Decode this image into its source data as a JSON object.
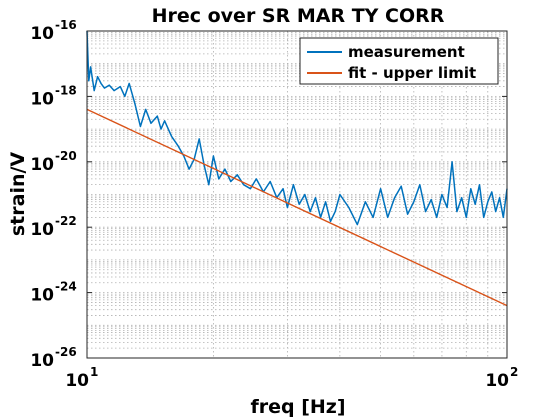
{
  "chart_data": {
    "type": "line",
    "title": "Hrec over SR MAR TY CORR",
    "xlabel": "freq [Hz]",
    "ylabel": "strain/V",
    "xscale": "log",
    "yscale": "log",
    "xlim": [
      10,
      100
    ],
    "ylim": [
      1e-26,
      1e-16
    ],
    "grid": true,
    "legend_position": "top-right",
    "x_ticks": [
      {
        "value": 10,
        "base": "10",
        "exp": "1"
      },
      {
        "value": 100,
        "base": "10",
        "exp": "2"
      }
    ],
    "y_ticks": [
      {
        "value": 1e-16,
        "base": "10",
        "exp": "-16"
      },
      {
        "value": 1e-18,
        "base": "10",
        "exp": "-18"
      },
      {
        "value": 1e-20,
        "base": "10",
        "exp": "-20"
      },
      {
        "value": 1e-22,
        "base": "10",
        "exp": "-22"
      },
      {
        "value": 1e-24,
        "base": "10",
        "exp": "-24"
      },
      {
        "value": 1e-26,
        "base": "10",
        "exp": "-26"
      }
    ],
    "series": [
      {
        "name": "measurement",
        "color": "#0072BD",
        "x": [
          10.0,
          10.1,
          10.2,
          10.4,
          10.6,
          10.8,
          11.0,
          11.3,
          11.6,
          12.0,
          12.3,
          12.6,
          13.0,
          13.4,
          13.8,
          14.2,
          14.7,
          15.0,
          15.3,
          15.9,
          16.5,
          17.0,
          17.5,
          18.0,
          18.5,
          19.0,
          19.5,
          20.0,
          20.6,
          21.3,
          22.0,
          22.8,
          23.6,
          24.5,
          25.3,
          26.3,
          27.3,
          28.3,
          29.3,
          30.0,
          31.0,
          32.0,
          33.0,
          34.0,
          35.0,
          36.0,
          37.0,
          38.0,
          39.0,
          40.0,
          42.0,
          44.0,
          46.0,
          48.0,
          50.0,
          52.0,
          54.0,
          56.0,
          58.0,
          60.0,
          62.0,
          64.0,
          66.0,
          68.0,
          70.0,
          72.0,
          74.0,
          76.0,
          78.0,
          80.0,
          82.0,
          84.0,
          86.0,
          88.0,
          90.0,
          92.0,
          94.0,
          96.0,
          98.0,
          100.0
        ],
        "y": [
          1e-16,
          3e-18,
          8e-18,
          1.5e-18,
          4e-18,
          2.5e-18,
          1.8e-18,
          2.2e-18,
          1.5e-18,
          2e-18,
          1e-18,
          2.5e-18,
          6e-19,
          1.2e-19,
          4e-19,
          1.5e-19,
          2.5e-19,
          1e-19,
          1.8e-19,
          6e-20,
          3e-20,
          1.5e-20,
          6e-21,
          1.2e-20,
          5e-20,
          8e-21,
          2e-21,
          1.5e-20,
          3e-21,
          6e-21,
          2.5e-21,
          4e-21,
          2e-21,
          1.5e-21,
          3e-21,
          1.2e-21,
          2.5e-21,
          8e-22,
          1.5e-21,
          4e-22,
          2e-21,
          5e-22,
          1e-21,
          3e-22,
          8e-22,
          2e-22,
          6e-22,
          1.5e-22,
          3e-22,
          1e-21,
          4e-22,
          1.2e-22,
          6e-22,
          2e-22,
          1.5e-21,
          2e-22,
          8e-22,
          1.8e-21,
          2.5e-22,
          6e-22,
          2e-21,
          3e-22,
          7e-22,
          2e-22,
          1e-21,
          4e-22,
          1e-20,
          3e-22,
          8e-22,
          2e-22,
          1.5e-21,
          5e-22,
          2e-21,
          2e-22,
          6e-22,
          1.2e-21,
          3e-22,
          8e-22,
          2e-22,
          1.5e-21
        ]
      },
      {
        "name": "fit - upper limit",
        "color": "#D95319",
        "x": [
          10,
          100
        ],
        "y": [
          4e-19,
          4e-25
        ]
      }
    ]
  }
}
